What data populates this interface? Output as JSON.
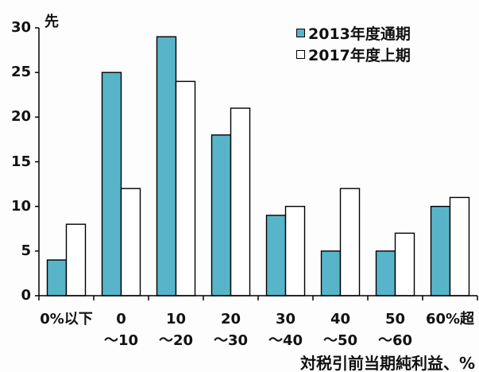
{
  "chart_data": {
    "type": "bar",
    "ylabel": "先",
    "xlabel": "対税引前当期純利益、%",
    "categories": [
      "0%以下",
      "0\n～10",
      "10\n～20",
      "20\n～30",
      "30\n～40",
      "40\n～50",
      "50\n～60",
      "60%超"
    ],
    "series": [
      {
        "name": "2013年度通期",
        "values": [
          4,
          25,
          29,
          18,
          9,
          5,
          5,
          10
        ],
        "color": "#58b5c9"
      },
      {
        "name": "2017年度上期",
        "values": [
          8,
          12,
          24,
          21,
          10,
          12,
          7,
          11
        ],
        "color": "#ffffff"
      }
    ],
    "ylim": [
      0,
      30
    ],
    "yticks": [
      0,
      5,
      10,
      15,
      20,
      25,
      30
    ],
    "edge_color": "#000000",
    "grid": false,
    "legend_position": "top-right"
  }
}
